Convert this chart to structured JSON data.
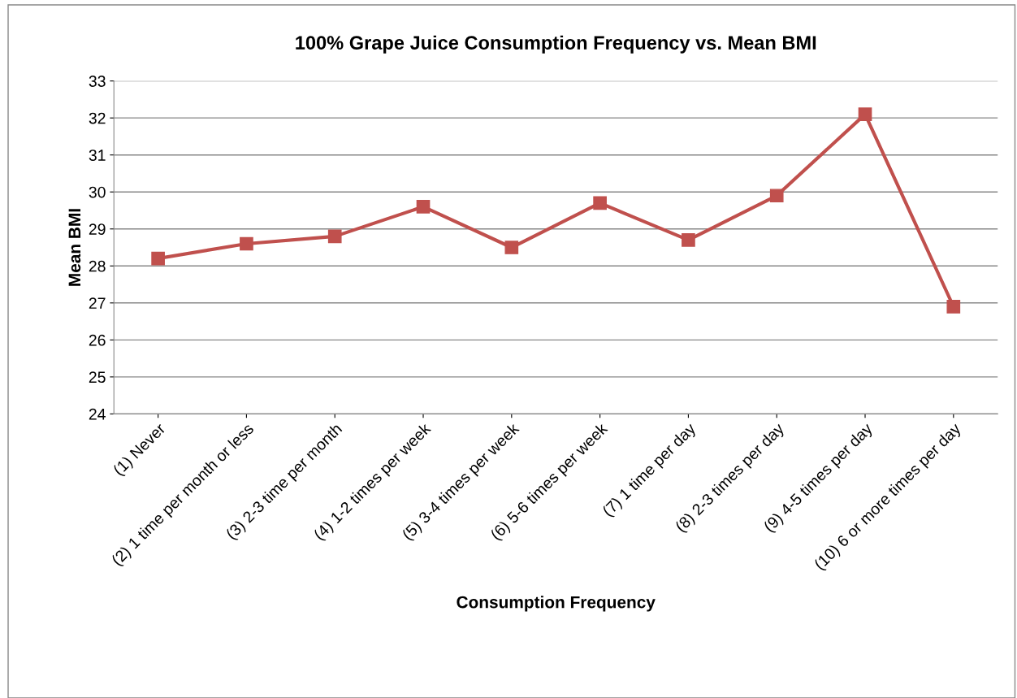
{
  "chart_data": {
    "type": "line",
    "title": "100% Grape Juice Consumption Frequency vs. Mean BMI",
    "xlabel": "Consumption Frequency",
    "ylabel": "Mean BMI",
    "categories": [
      "(1) Never",
      "(2) 1 time per month or less",
      "(3) 2-3 time per month",
      "(4) 1-2 times per week",
      "(5) 3-4 times per week",
      "(6) 5-6 times per week",
      "(7) 1 time per day",
      "(8) 2-3 times per day",
      "(9) 4-5 times per day",
      "(10) 6 or more times per day"
    ],
    "series": [
      {
        "color": "#c0504d",
        "values": [
          28.2,
          28.6,
          28.8,
          29.6,
          28.5,
          29.7,
          28.7,
          29.9,
          32.1,
          26.9
        ]
      }
    ],
    "ylim": [
      24,
      33
    ],
    "yticks": [
      24,
      25,
      26,
      27,
      28,
      29,
      30,
      31,
      32,
      33
    ],
    "grid": "y",
    "marker": "square",
    "line_style": "solid",
    "legend": false
  }
}
